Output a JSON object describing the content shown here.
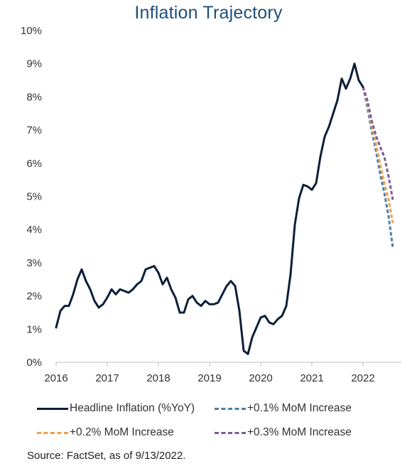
{
  "chart_data": {
    "type": "line",
    "title": "Inflation Trajectory",
    "source_note": "Source: FactSet, as of 9/13/2022.",
    "x_ticks": [
      "2016",
      "2017",
      "2018",
      "2019",
      "2020",
      "2021",
      "2022"
    ],
    "y_ticks": [
      "0%",
      "1%",
      "2%",
      "3%",
      "4%",
      "5%",
      "6%",
      "7%",
      "8%",
      "9%",
      "10%"
    ],
    "xlim": [
      "2016-01",
      "2022-10"
    ],
    "ylim": [
      0,
      10
    ],
    "grid": false,
    "legend_position": "bottom",
    "series": [
      {
        "name": "Headline Inflation (%YoY)",
        "color": "#0E1E3A",
        "style": "solid",
        "points": [
          [
            "2016-01",
            1.05
          ],
          [
            "2016-02",
            1.55
          ],
          [
            "2016-03",
            1.7
          ],
          [
            "2016-04",
            1.7
          ],
          [
            "2016-05",
            2.05
          ],
          [
            "2016-06",
            2.5
          ],
          [
            "2016-07",
            2.8
          ],
          [
            "2016-08",
            2.45
          ],
          [
            "2016-09",
            2.2
          ],
          [
            "2016-10",
            1.85
          ],
          [
            "2016-11",
            1.65
          ],
          [
            "2016-12",
            1.75
          ],
          [
            "2017-01",
            1.95
          ],
          [
            "2017-02",
            2.2
          ],
          [
            "2017-03",
            2.05
          ],
          [
            "2017-04",
            2.2
          ],
          [
            "2017-05",
            2.15
          ],
          [
            "2017-06",
            2.1
          ],
          [
            "2017-07",
            2.2
          ],
          [
            "2017-08",
            2.35
          ],
          [
            "2017-09",
            2.45
          ],
          [
            "2017-10",
            2.8
          ],
          [
            "2017-11",
            2.85
          ],
          [
            "2017-12",
            2.9
          ],
          [
            "2018-01",
            2.7
          ],
          [
            "2018-02",
            2.35
          ],
          [
            "2018-03",
            2.55
          ],
          [
            "2018-04",
            2.2
          ],
          [
            "2018-05",
            1.95
          ],
          [
            "2018-06",
            1.5
          ],
          [
            "2018-07",
            1.5
          ],
          [
            "2018-08",
            1.9
          ],
          [
            "2018-09",
            2.0
          ],
          [
            "2018-10",
            1.8
          ],
          [
            "2018-11",
            1.7
          ],
          [
            "2018-12",
            1.85
          ],
          [
            "2019-01",
            1.75
          ],
          [
            "2019-02",
            1.75
          ],
          [
            "2019-03",
            1.8
          ],
          [
            "2019-04",
            2.05
          ],
          [
            "2019-05",
            2.3
          ],
          [
            "2019-06",
            2.45
          ],
          [
            "2019-07",
            2.3
          ],
          [
            "2019-08",
            1.55
          ],
          [
            "2019-09",
            0.35
          ],
          [
            "2019-10",
            0.25
          ],
          [
            "2019-11",
            0.75
          ],
          [
            "2019-12",
            1.05
          ],
          [
            "2020-01",
            1.35
          ],
          [
            "2020-02",
            1.4
          ],
          [
            "2020-03",
            1.2
          ],
          [
            "2020-04",
            1.15
          ],
          [
            "2020-05",
            1.3
          ],
          [
            "2020-06",
            1.4
          ],
          [
            "2020-07",
            1.7
          ],
          [
            "2020-08",
            2.65
          ],
          [
            "2020-09",
            4.15
          ],
          [
            "2020-10",
            4.95
          ],
          [
            "2020-11",
            5.35
          ],
          [
            "2020-12",
            5.3
          ],
          [
            "2021-01",
            5.2
          ],
          [
            "2021-02",
            5.4
          ],
          [
            "2021-03",
            6.2
          ],
          [
            "2021-04",
            6.8
          ],
          [
            "2021-05",
            7.1
          ],
          [
            "2021-06",
            7.5
          ],
          [
            "2021-07",
            7.9
          ],
          [
            "2021-08",
            8.55
          ],
          [
            "2021-09",
            8.25
          ],
          [
            "2021-10",
            8.55
          ],
          [
            "2021-11",
            9.0
          ],
          [
            "2021-12",
            8.5
          ],
          [
            "2022-01",
            8.3
          ]
        ]
      },
      {
        "name": "+0.1% MoM Increase",
        "color": "#4E7FA8",
        "style": "dashed",
        "points": [
          [
            "2022-01",
            8.3
          ],
          [
            "2022-02",
            7.7
          ],
          [
            "2022-03",
            7.0
          ],
          [
            "2022-04",
            6.4
          ],
          [
            "2022-05",
            5.7
          ],
          [
            "2022-06",
            5.1
          ],
          [
            "2022-07",
            4.4
          ],
          [
            "2022-08",
            3.45
          ]
        ]
      },
      {
        "name": "+0.2% MoM Increase",
        "color": "#F0A04B",
        "style": "dashed",
        "points": [
          [
            "2022-01",
            8.3
          ],
          [
            "2022-02",
            7.8
          ],
          [
            "2022-03",
            7.2
          ],
          [
            "2022-04",
            6.6
          ],
          [
            "2022-05",
            6.0
          ],
          [
            "2022-06",
            5.4
          ],
          [
            "2022-07",
            4.9
          ],
          [
            "2022-08",
            4.2
          ]
        ]
      },
      {
        "name": "+0.3% MoM Increase",
        "color": "#7B5B99",
        "style": "dashed",
        "points": [
          [
            "2022-01",
            8.3
          ],
          [
            "2022-02",
            7.9
          ],
          [
            "2022-03",
            7.3
          ],
          [
            "2022-04",
            6.85
          ],
          [
            "2022-05",
            6.5
          ],
          [
            "2022-06",
            6.2
          ],
          [
            "2022-07",
            5.6
          ],
          [
            "2022-08",
            4.9
          ]
        ]
      }
    ]
  }
}
